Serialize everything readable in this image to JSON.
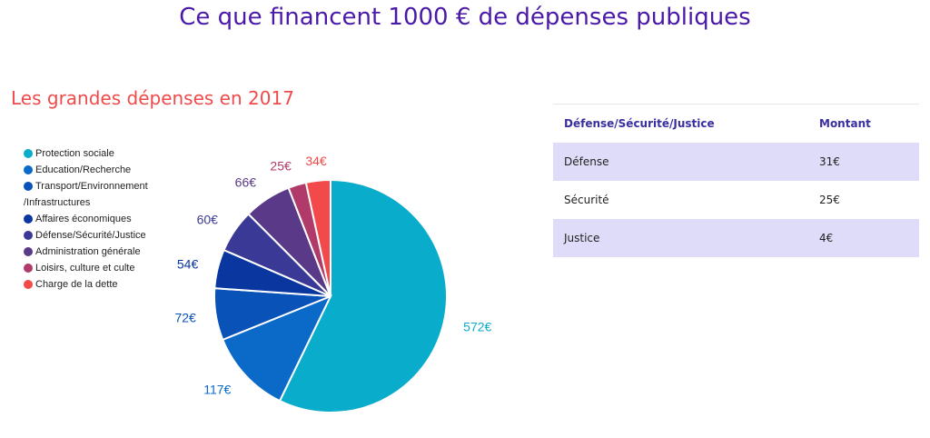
{
  "page_title": "Ce que financent 1000 € de dépenses publiques",
  "section_title": "Les grandes dépenses en 2017",
  "table": {
    "headers": [
      "Défense/Sécurité/Justice",
      "Montant"
    ],
    "rows": [
      [
        "Défense",
        "31€"
      ],
      [
        "Sécurité",
        "25€"
      ],
      [
        "Justice",
        "4€"
      ]
    ]
  },
  "chart_data": {
    "type": "pie",
    "legend_position": "left",
    "categories": [
      "Protection sociale",
      "Education/Recherche",
      "Transport/Environnement /Infrastructures",
      "Affaires économiques",
      "Défense/Sécurité/Justice",
      "Administration générale",
      "Loisirs, culture et culte",
      "Charge de la dette"
    ],
    "values": [
      572,
      117,
      72,
      54,
      60,
      66,
      25,
      34
    ],
    "data_labels": [
      "572€",
      "117€",
      "72€",
      "54€",
      "60€",
      "66€",
      "25€",
      "34€"
    ],
    "colors": [
      "#0aaccc",
      "#0b6ac8",
      "#0852b8",
      "#0a36a0",
      "#3a3a96",
      "#5a3a88",
      "#b03a6a",
      "#f24a4a"
    ]
  }
}
